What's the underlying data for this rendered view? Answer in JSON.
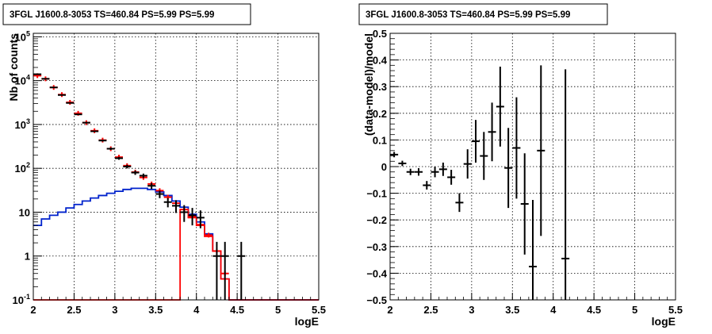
{
  "chart_data": [
    {
      "type": "line",
      "title": "3FGL J1600.8-3053 TS=460.84 PS=5.99 PS=5.99",
      "xlabel": "logE",
      "ylabel": "Nb of counts",
      "xlim": [
        2,
        5.5
      ],
      "ylim": [
        0.1,
        120000
      ],
      "yscale": "log",
      "grid": true,
      "xticks": [
        "2",
        "2.5",
        "3",
        "3.5",
        "4",
        "4.5",
        "5",
        "5.5"
      ],
      "yticks": [
        "10^-1",
        "1",
        "10",
        "10^2",
        "10^3",
        "10^4",
        "10^5"
      ],
      "bin_edges": [
        2,
        2.1,
        2.2,
        2.3,
        2.4,
        2.5,
        2.6,
        2.7,
        2.8,
        2.9,
        3,
        3.1,
        3.2,
        3.3,
        3.4,
        3.5,
        3.6,
        3.7,
        3.8,
        3.9,
        4,
        4.1,
        4.2,
        4.3,
        4.4,
        4.5,
        4.6,
        4.7,
        4.8,
        4.9,
        5,
        5.1,
        5.2,
        5.3,
        5.4,
        5.5
      ],
      "series": [
        {
          "name": "",
          "color": "#000000",
          "style": "error_points",
          "x": [
            2.05,
            2.15,
            2.25,
            2.35,
            2.45,
            2.55,
            2.65,
            2.75,
            2.85,
            2.95,
            3.05,
            3.15,
            3.25,
            3.35,
            3.45,
            3.55,
            3.65,
            3.75,
            3.85,
            3.95,
            4.05,
            4.15,
            4.25,
            4.35,
            4.55
          ],
          "y": [
            14000,
            11000,
            7000,
            4700,
            3100,
            1700,
            1100,
            700,
            430,
            280,
            170,
            110,
            80,
            68,
            40,
            26,
            17,
            14,
            10,
            8.5,
            7.5,
            0,
            1,
            1,
            1
          ],
          "yerr_lo": [
            120,
            105,
            85,
            70,
            55,
            42,
            33,
            27,
            21,
            17,
            13,
            10.5,
            9,
            8,
            6.3,
            5.1,
            4.1,
            4.4,
            4,
            3.5,
            3.2,
            0,
            0.9,
            0.9,
            0.9
          ],
          "yerr_hi": [
            120,
            105,
            85,
            70,
            55,
            42,
            33,
            27,
            21,
            17,
            13,
            10.5,
            9,
            8,
            6.3,
            5.1,
            4.1,
            4.8,
            4.5,
            4,
            3.5,
            0,
            1.1,
            1.1,
            1.1
          ]
        },
        {
          "name": "",
          "color": "#ff0000",
          "style": "model_points",
          "x": [
            2.05,
            2.15,
            2.25,
            2.35,
            2.45,
            2.55,
            2.65,
            2.75,
            2.85,
            2.95,
            3.05,
            3.15,
            3.25,
            3.35,
            3.45,
            3.55,
            3.65,
            3.75,
            3.85,
            3.95,
            4.05,
            4.15,
            4.25,
            4.35
          ],
          "y": [
            13000,
            11000,
            7000,
            4800,
            3200,
            1800,
            1100,
            720,
            440,
            280,
            180,
            115,
            82,
            62,
            44,
            31,
            22,
            16,
            11.5,
            8,
            5.2,
            3,
            1.3,
            0.4
          ]
        },
        {
          "name": "",
          "color": "#0022cc",
          "style": "step",
          "y": [
            5,
            7,
            8.5,
            10,
            12.5,
            15,
            18,
            21,
            24,
            27,
            30,
            33,
            35,
            35,
            33,
            29,
            24,
            18,
            13,
            9,
            6,
            3.2,
            1.3,
            0.3,
            0.1,
            0.1,
            0.1,
            0.1,
            0.1,
            0.1,
            0.1,
            0.1,
            0.1,
            0.1,
            0.1
          ]
        },
        {
          "name": "",
          "color": "#ff0000",
          "style": "step",
          "y": [
            0.1,
            0.1,
            0.1,
            0.1,
            0.1,
            0.1,
            0.1,
            0.1,
            0.1,
            0.1,
            0.1,
            0.1,
            0.1,
            0.1,
            0.1,
            0.1,
            0.1,
            0.1,
            11.5,
            7.5,
            5,
            2.8,
            1.3,
            0.3,
            0.1,
            0.1,
            0.1,
            0.1,
            0.1,
            0.1,
            0.1,
            0.1,
            0.1,
            0.1,
            0.1
          ]
        }
      ]
    },
    {
      "type": "scatter",
      "title": "3FGL J1600.8-3053 TS=460.84 PS=5.99 PS=5.99",
      "xlabel": "logE",
      "ylabel": "(data-model)/model",
      "xlim": [
        2,
        5.5
      ],
      "ylim": [
        -0.5,
        0.5
      ],
      "grid": true,
      "xticks": [
        "2",
        "2.5",
        "3",
        "3.5",
        "4",
        "4.5",
        "5",
        "5.5"
      ],
      "yticks": [
        "−0.5",
        "−0.4",
        "−0.3",
        "−0.2",
        "−0.1",
        "0",
        "0.1",
        "0.2",
        "0.3",
        "0.4",
        "0.5"
      ],
      "series": [
        {
          "name": "",
          "color": "#000000",
          "x": [
            2.05,
            2.15,
            2.25,
            2.35,
            2.45,
            2.55,
            2.65,
            2.75,
            2.85,
            2.95,
            3.05,
            3.15,
            3.25,
            3.35,
            3.45,
            3.55,
            3.65,
            3.75,
            3.85,
            4.15
          ],
          "y": [
            0.045,
            0.012,
            -0.02,
            -0.02,
            -0.07,
            -0.02,
            -0.01,
            -0.04,
            -0.135,
            0.01,
            0.095,
            0.04,
            0.13,
            0.225,
            -0.005,
            0.07,
            -0.14,
            -0.375,
            0.06,
            -0.345
          ],
          "yerr": [
            0.01,
            0.01,
            0.012,
            0.014,
            0.016,
            0.02,
            0.025,
            0.028,
            0.035,
            0.055,
            0.08,
            0.09,
            0.11,
            0.15,
            0.15,
            0.19,
            0.19,
            0.25,
            0.32,
            0.71
          ]
        }
      ]
    }
  ]
}
